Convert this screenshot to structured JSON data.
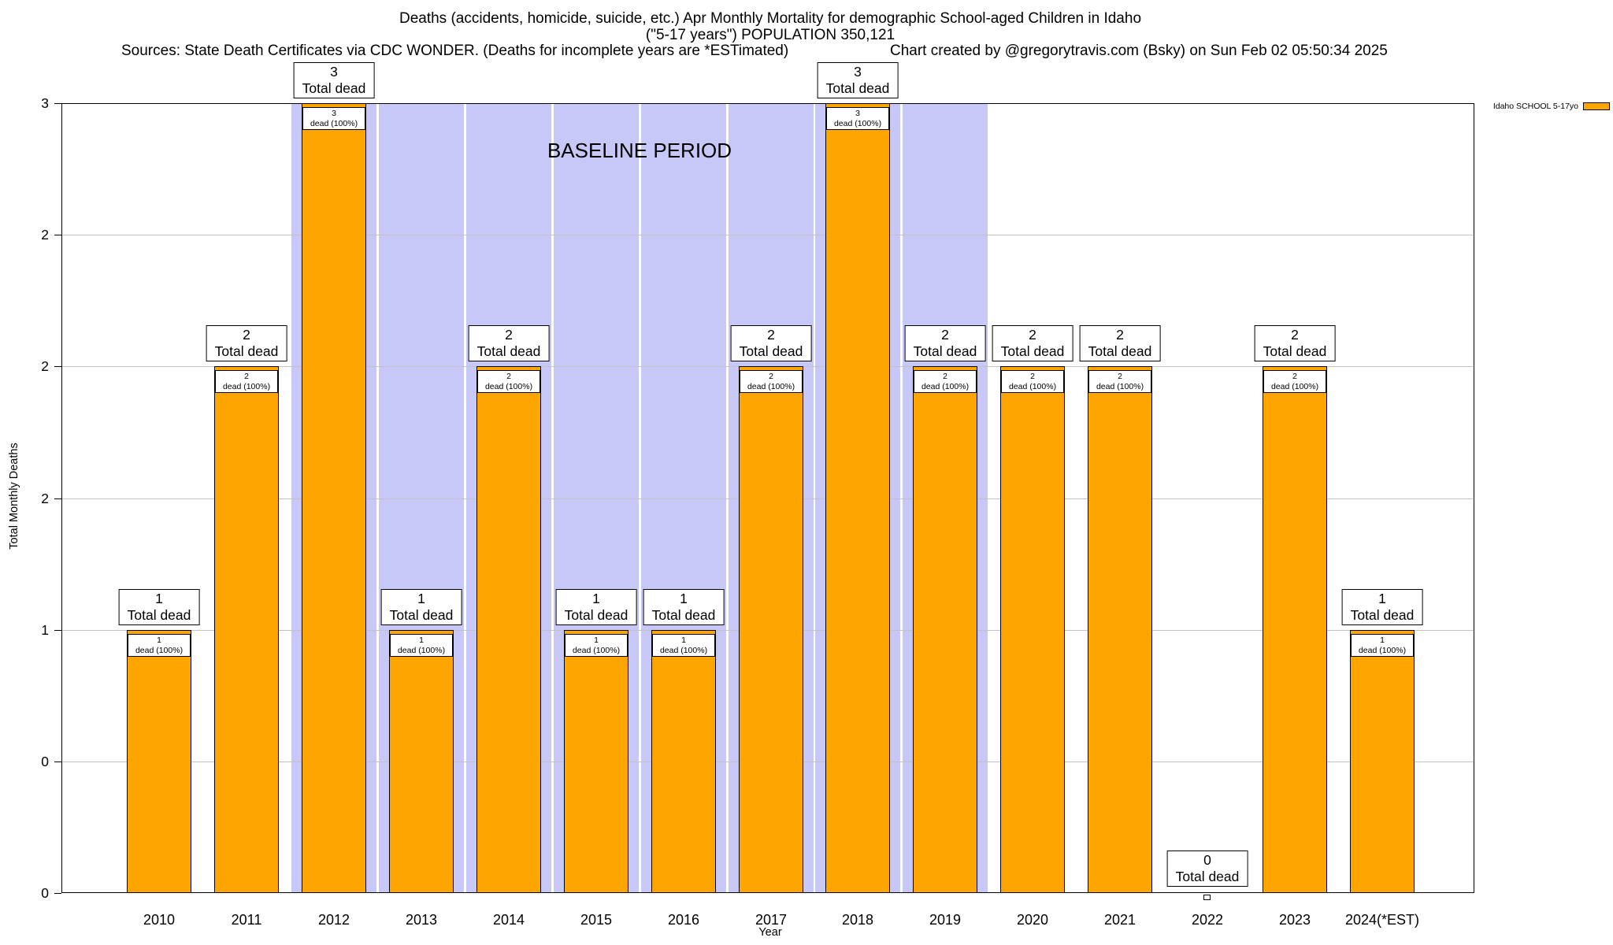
{
  "chart_data": {
    "type": "bar",
    "title": "Deaths (accidents, homicide, suicide, etc.) Apr Monthly Mortality for demographic School-aged Children in Idaho",
    "subtitle": "(\"5-17 years\") POPULATION 350,121",
    "source_note": "Sources: State Death Certificates via CDC WONDER. (Deaths for incomplete years are *ESTimated)",
    "credit_note": "Chart created by @gregorytravis.com (Bsky) on Sun Feb 02 05:50:34 2025",
    "xlabel": "Year",
    "ylabel": "Total Monthly Deaths",
    "ylim": [
      0,
      3
    ],
    "ytick_values": [
      0,
      0.5,
      1,
      1.5,
      2,
      2.5,
      3
    ],
    "ytick_labels": [
      "0",
      "0",
      "1",
      "2",
      "2",
      "2",
      "3"
    ],
    "categories": [
      "2010",
      "2011",
      "2012",
      "2013",
      "2014",
      "2015",
      "2016",
      "2017",
      "2018",
      "2019",
      "2020",
      "2021",
      "2022",
      "2023",
      "2024(*EST)"
    ],
    "values": [
      1,
      2,
      3,
      1,
      2,
      1,
      1,
      2,
      3,
      2,
      2,
      2,
      0,
      2,
      1
    ],
    "bar_label_word": "Total dead",
    "bar_inner_label_word": "dead (100%)",
    "grid": true,
    "legend_position": "top-right-outside",
    "legend": {
      "label": "Idaho SCHOOL 5-17yo",
      "color": "#FFA500"
    },
    "baseline": {
      "label": "BASELINE PERIOD",
      "start_year": "2012",
      "end_year": "2019"
    },
    "colors": {
      "bar": "#FFA500",
      "bar_border": "#000000",
      "baseline_region": "#C8C8F8",
      "gridline": "#c2c2c2"
    }
  }
}
